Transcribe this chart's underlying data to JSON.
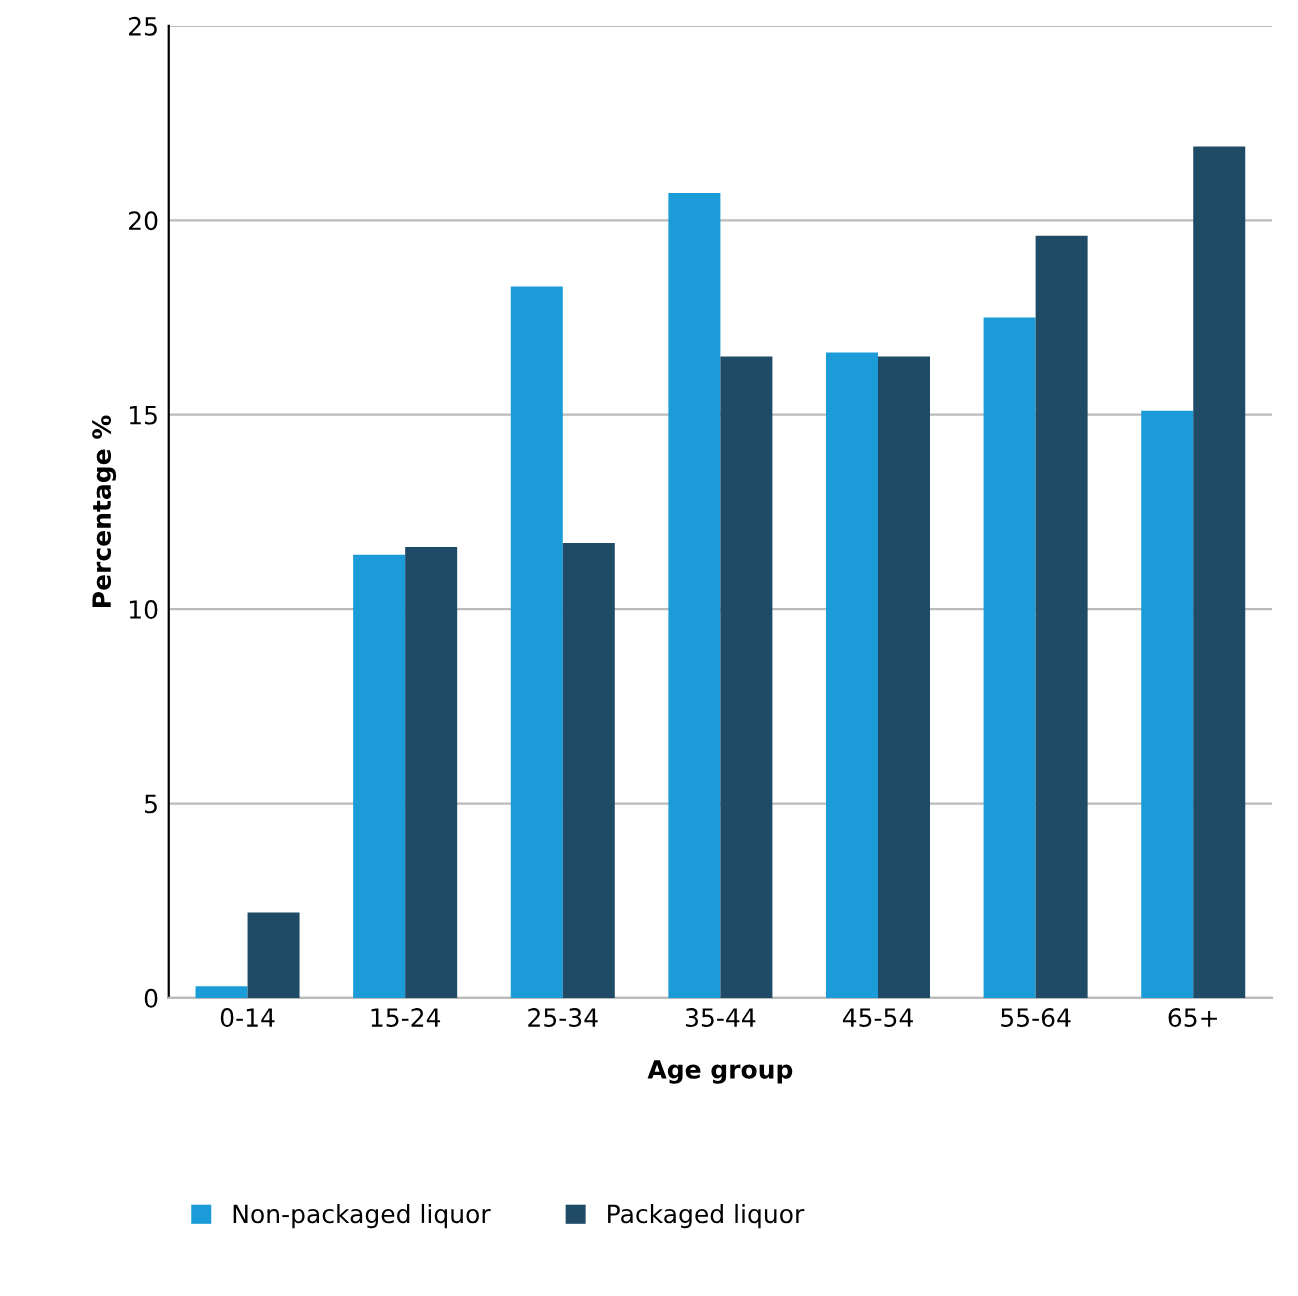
{
  "chart_data": {
    "type": "bar",
    "xlabel": "Age group",
    "ylabel": "Percentage %",
    "categories": [
      "0-14",
      "15-24",
      "25-34",
      "35-44",
      "45-54",
      "55-64",
      "65+"
    ],
    "series": [
      {
        "name": "Non-packaged liquor",
        "color": "#1b9bd7",
        "values": [
          0.3,
          11.4,
          18.3,
          20.7,
          16.6,
          17.5,
          15.1
        ]
      },
      {
        "name": "Packaged liquor",
        "color": "#1f4b66",
        "values": [
          2.2,
          11.6,
          11.7,
          16.5,
          16.5,
          19.6,
          21.9
        ]
      }
    ],
    "ylim": [
      0,
      25
    ],
    "yticks": [
      0,
      5,
      10,
      15,
      20,
      25
    ],
    "grid": "y",
    "legend": "bottom"
  }
}
